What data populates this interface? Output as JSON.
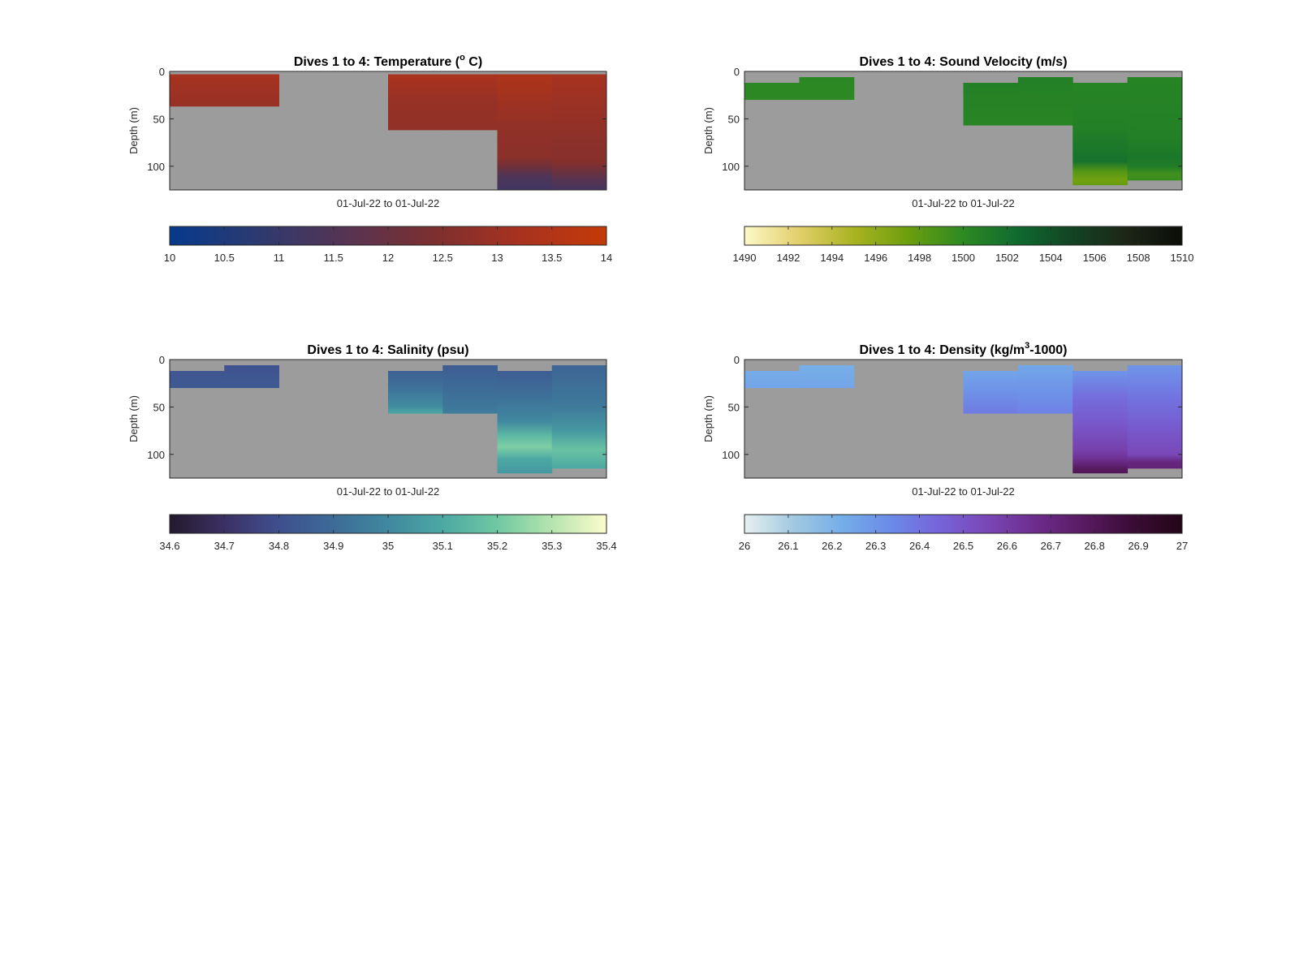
{
  "chart_data": [
    {
      "type": "heatmap",
      "title": {
        "main": "Dives 1 to 4: Temperature (",
        "sup": "o",
        "rest": " C)"
      },
      "ylabel": "Depth (m)",
      "xlabel": "01-Jul-22 to 01-Jul-22",
      "y_ticks": [
        "0",
        "50",
        "100"
      ],
      "ylim": [
        0,
        125
      ],
      "y_reversed": true,
      "background_color": "#9c9c9c",
      "colorbar": {
        "range": [
          10,
          14
        ],
        "ticks": [
          "10",
          "10.5",
          "11",
          "11.5",
          "12",
          "12.5",
          "13",
          "13.5",
          "14"
        ],
        "colormap": [
          "#063a8c",
          "#2c3a70",
          "#553453",
          "#7b2f30",
          "#a73220",
          "#c43a08"
        ]
      },
      "columns": [
        {
          "top": 3,
          "bottom": 37,
          "values": [
            [
              0,
              13.2
            ],
            [
              37,
              12.9
            ]
          ]
        },
        {
          "top": 3,
          "bottom": 37,
          "values": [
            [
              0,
              13.2
            ],
            [
              37,
              12.9
            ]
          ]
        },
        null,
        null,
        {
          "top": 3,
          "bottom": 62,
          "values": [
            [
              0,
              13.3
            ],
            [
              30,
              12.9
            ],
            [
              62,
              12.8
            ]
          ]
        },
        {
          "top": 3,
          "bottom": 62,
          "values": [
            [
              0,
              13.3
            ],
            [
              30,
              12.9
            ],
            [
              62,
              12.8
            ]
          ]
        },
        {
          "top": 3,
          "bottom": 125,
          "values": [
            [
              0,
              13.4
            ],
            [
              60,
              12.8
            ],
            [
              90,
              12.7
            ],
            [
              100,
              12.2
            ],
            [
              110,
              11.5
            ],
            [
              125,
              11.2
            ]
          ]
        },
        {
          "top": 3,
          "bottom": 125,
          "values": [
            [
              0,
              13.2
            ],
            [
              60,
              12.8
            ],
            [
              95,
              12.6
            ],
            [
              105,
              12.1
            ],
            [
              115,
              11.6
            ],
            [
              125,
              11.3
            ]
          ]
        }
      ]
    },
    {
      "type": "heatmap",
      "title": {
        "main": "Dives 1 to 4: Sound Velocity (m/s)",
        "sup": "",
        "rest": ""
      },
      "ylabel": "Depth (m)",
      "xlabel": "01-Jul-22 to 01-Jul-22",
      "y_ticks": [
        "0",
        "50",
        "100"
      ],
      "ylim": [
        0,
        125
      ],
      "y_reversed": true,
      "background_color": "#9c9c9c",
      "colorbar": {
        "range": [
          1490,
          1510
        ],
        "ticks": [
          "1490",
          "1492",
          "1494",
          "1496",
          "1498",
          "1500",
          "1502",
          "1504",
          "1506",
          "1508",
          "1510"
        ],
        "colormap": [
          "#fdf8c8",
          "#e2cf6a",
          "#a9b321",
          "#6c9e0e",
          "#2d8a22",
          "#0f6a30",
          "#134323",
          "#1d2516",
          "#0b0d08"
        ]
      },
      "columns": [
        {
          "top": 12,
          "bottom": 30,
          "values": [
            [
              0,
              1500.2
            ],
            [
              30,
              1500.1
            ]
          ]
        },
        {
          "top": 6,
          "bottom": 30,
          "values": [
            [
              0,
              1500.2
            ],
            [
              30,
              1500.1
            ]
          ]
        },
        null,
        null,
        {
          "top": 12,
          "bottom": 57,
          "values": [
            [
              0,
              1500.8
            ],
            [
              30,
              1500.6
            ],
            [
              57,
              1500.4
            ]
          ]
        },
        {
          "top": 6,
          "bottom": 57,
          "values": [
            [
              0,
              1500.8
            ],
            [
              30,
              1500.6
            ],
            [
              57,
              1500.4
            ]
          ]
        },
        {
          "top": 12,
          "bottom": 120,
          "values": [
            [
              0,
              1500.5
            ],
            [
              60,
              1500.8
            ],
            [
              80,
              1501.4
            ],
            [
              95,
              1501.8
            ],
            [
              105,
              1498.5
            ],
            [
              115,
              1497.2
            ],
            [
              120,
              1497.8
            ]
          ]
        },
        {
          "top": 6,
          "bottom": 115,
          "values": [
            [
              0,
              1500.5
            ],
            [
              70,
              1500.8
            ],
            [
              90,
              1501.5
            ],
            [
              100,
              1501.0
            ],
            [
              108,
              1499.2
            ],
            [
              115,
              1499.6
            ]
          ]
        }
      ]
    },
    {
      "type": "heatmap",
      "title": {
        "main": "Dives 1 to 4: Salinity (psu)",
        "sup": "",
        "rest": ""
      },
      "ylabel": "Depth (m)",
      "xlabel": "01-Jul-22 to 01-Jul-22",
      "y_ticks": [
        "0",
        "50",
        "100"
      ],
      "ylim": [
        0,
        125
      ],
      "y_reversed": true,
      "background_color": "#9c9c9c",
      "colorbar": {
        "range": [
          34.6,
          35.4
        ],
        "ticks": [
          "34.6",
          "34.7",
          "34.8",
          "34.9",
          "35",
          "35.1",
          "35.2",
          "35.3",
          "35.4"
        ],
        "colormap": [
          "#231a2c",
          "#3b3063",
          "#3f4f8f",
          "#3d6b97",
          "#40889f",
          "#4ca8a3",
          "#70c8a2",
          "#b5e4af",
          "#fcfccc"
        ]
      },
      "columns": [
        {
          "top": 12,
          "bottom": 30,
          "values": [
            [
              0,
              34.82
            ],
            [
              30,
              34.84
            ]
          ]
        },
        {
          "top": 6,
          "bottom": 30,
          "values": [
            [
              0,
              34.81
            ],
            [
              30,
              34.84
            ]
          ]
        },
        null,
        null,
        {
          "top": 12,
          "bottom": 57,
          "values": [
            [
              0,
              34.86
            ],
            [
              30,
              34.92
            ],
            [
              50,
              35.02
            ],
            [
              57,
              35.1
            ]
          ]
        },
        {
          "top": 6,
          "bottom": 57,
          "values": [
            [
              0,
              34.85
            ],
            [
              30,
              34.9
            ],
            [
              50,
              34.94
            ],
            [
              57,
              34.96
            ]
          ]
        },
        {
          "top": 12,
          "bottom": 120,
          "values": [
            [
              0,
              34.85
            ],
            [
              40,
              34.92
            ],
            [
              65,
              35.0
            ],
            [
              80,
              35.15
            ],
            [
              92,
              35.22
            ],
            [
              105,
              35.1
            ],
            [
              120,
              35.05
            ]
          ]
        },
        {
          "top": 6,
          "bottom": 115,
          "values": [
            [
              0,
              34.88
            ],
            [
              50,
              34.95
            ],
            [
              75,
              35.05
            ],
            [
              95,
              35.18
            ],
            [
              115,
              35.1
            ]
          ]
        }
      ]
    },
    {
      "type": "heatmap",
      "title": {
        "main": "Dives 1 to 4: Density (kg/m",
        "sup": "3",
        "rest": "-1000)"
      },
      "ylabel": "Depth (m)",
      "xlabel": "01-Jul-22 to 01-Jul-22",
      "y_ticks": [
        "0",
        "50",
        "100"
      ],
      "ylim": [
        0,
        125
      ],
      "y_reversed": true,
      "background_color": "#9c9c9c",
      "colorbar": {
        "range": [
          26,
          27
        ],
        "ticks": [
          "26",
          "26.1",
          "26.2",
          "26.3",
          "26.4",
          "26.5",
          "26.6",
          "26.7",
          "26.8",
          "26.9",
          "27"
        ],
        "colormap": [
          "#e7f0f0",
          "#a2c9e1",
          "#75aee8",
          "#6b8be8",
          "#7664da",
          "#7a47b6",
          "#6c2c8c",
          "#571a60",
          "#3a0c35",
          "#240618"
        ]
      },
      "columns": [
        {
          "top": 12,
          "bottom": 30,
          "values": [
            [
              0,
              26.23
            ],
            [
              30,
              26.25
            ]
          ]
        },
        {
          "top": 6,
          "bottom": 30,
          "values": [
            [
              0,
              26.22
            ],
            [
              30,
              26.25
            ]
          ]
        },
        null,
        null,
        {
          "top": 12,
          "bottom": 57,
          "values": [
            [
              0,
              26.25
            ],
            [
              30,
              26.3
            ],
            [
              57,
              26.38
            ]
          ]
        },
        {
          "top": 6,
          "bottom": 57,
          "values": [
            [
              0,
              26.24
            ],
            [
              30,
              26.3
            ],
            [
              57,
              26.36
            ]
          ]
        },
        {
          "top": 12,
          "bottom": 120,
          "values": [
            [
              0,
              26.3
            ],
            [
              40,
              26.42
            ],
            [
              70,
              26.5
            ],
            [
              95,
              26.58
            ],
            [
              105,
              26.65
            ],
            [
              115,
              26.78
            ],
            [
              120,
              26.8
            ]
          ]
        },
        {
          "top": 6,
          "bottom": 115,
          "values": [
            [
              0,
              26.3
            ],
            [
              40,
              26.4
            ],
            [
              70,
              26.48
            ],
            [
              100,
              26.55
            ],
            [
              108,
              26.7
            ],
            [
              115,
              26.72
            ]
          ]
        }
      ]
    }
  ]
}
